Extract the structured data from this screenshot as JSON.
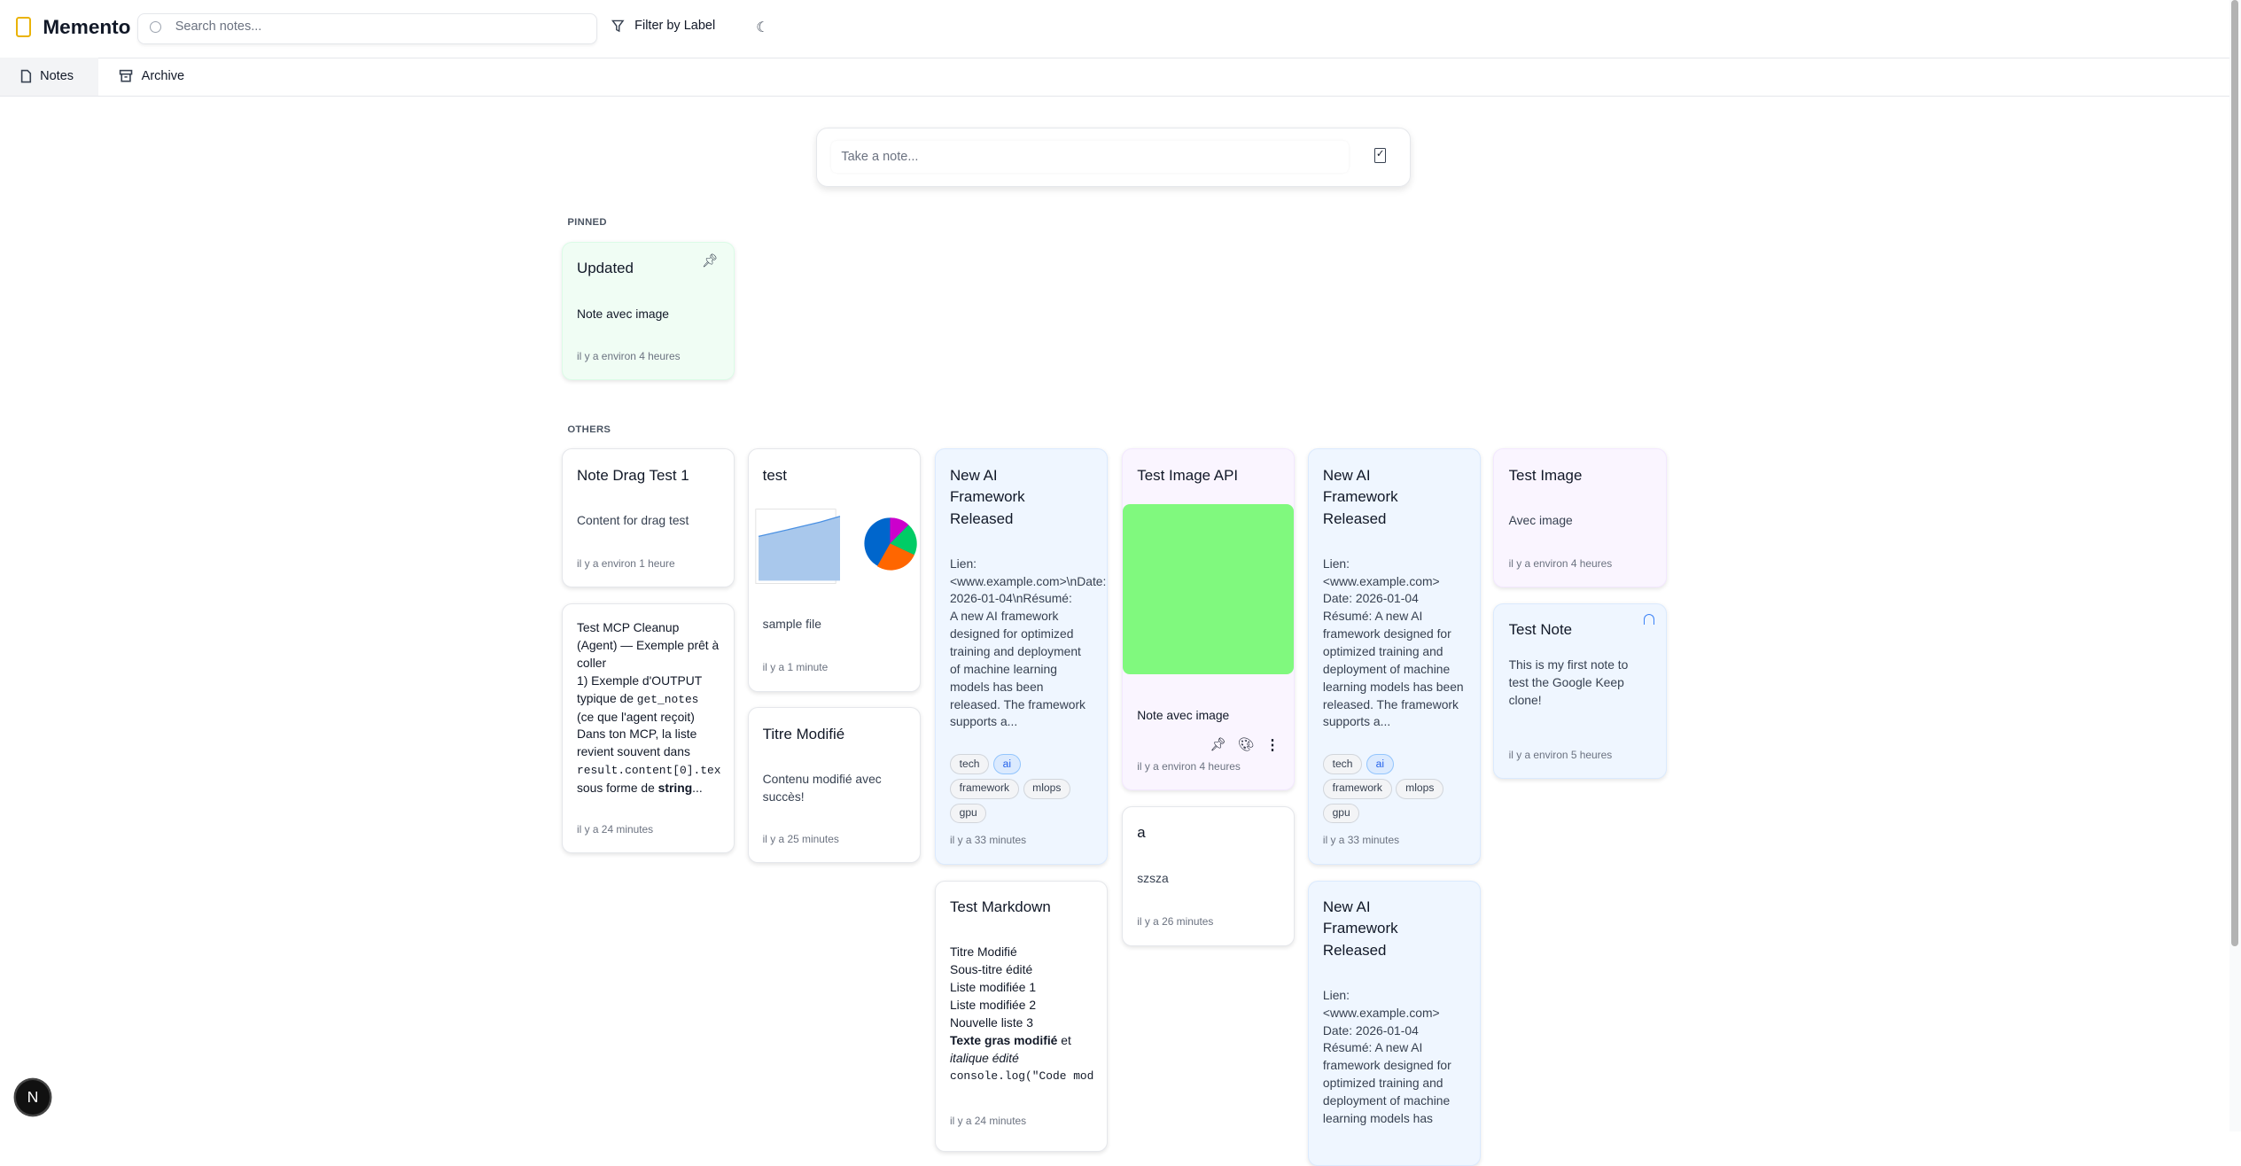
{
  "app": {
    "name": "Memento",
    "search_placeholder": "Search notes...",
    "filter_label": "Filter by Label"
  },
  "tabs": [
    {
      "label": "Notes",
      "active": true
    },
    {
      "label": "Archive",
      "active": false
    }
  ],
  "composer": {
    "placeholder": "Take a note..."
  },
  "sections": {
    "pinned": "PINNED",
    "others": "OTHERS"
  },
  "pinned": [
    {
      "title": "Updated",
      "body": "Note avec image",
      "time": "il y a environ 4 heures",
      "color": "#f0fdf4"
    }
  ],
  "notes": [
    {
      "title": "Note Drag Test 1",
      "body": "Content for drag test",
      "time": "il y a environ 1 heure"
    },
    {
      "title": "",
      "body_parts": [
        "Test MCP Cleanup (Agent) — Exemple prêt à coller\n1) Exemple d'OUTPUT typique de ",
        "get_notes",
        "\n(ce que l'agent reçoit)\nDans ton MCP, la liste revient souvent dans\n",
        "result.content[0].tex",
        "\nsous forme de ",
        "string",
        "..."
      ],
      "time": "il y a 24 minutes"
    },
    {
      "title": "test",
      "body": "sample file",
      "time": "il y a 1 minute"
    },
    {
      "title": "Titre Modifié",
      "body": "Contenu modifié avec succès!",
      "time": "il y a 25 minutes"
    },
    {
      "title": "New AI Framework Released",
      "body": "Lien:\n<www.example.com>\\nDate:\n2026-01-04\\nRésumé:\nA new AI framework designed for optimized training and deployment of machine learning models has been released. The framework supports a...",
      "tags": [
        "tech",
        "ai",
        "framework",
        "mlops",
        "gpu"
      ],
      "time": "il y a 33 minutes",
      "color": "#eff6ff"
    },
    {
      "title": "Test Markdown",
      "body_parts": [
        "Titre Modifié\nSous-titre édité\nListe modifiée 1\nListe modifiée 2\nNouvelle liste 3\n",
        "Texte gras modifié",
        " et\n",
        "italique édité",
        "\n",
        "console.log(\"Code mod"
      ],
      "time": "il y a 24 minutes"
    },
    {
      "title": "Test Image API",
      "body": "Note avec image",
      "time": "il y a environ 4 heures",
      "image_color": "#80f97e",
      "color": "#faf5ff"
    },
    {
      "title": "a",
      "body": "szsza",
      "time": "il y a 26 minutes"
    },
    {
      "title": "New AI Framework Released",
      "body": "Lien:\n<www.example.com>\nDate: 2026-01-04\nRésumé: A new AI framework designed for optimized training and deployment of machine learning models has been released. The framework supports a...",
      "tags": [
        "tech",
        "ai",
        "framework",
        "mlops",
        "gpu"
      ],
      "time": "il y a 33 minutes",
      "color": "#eff6ff"
    },
    {
      "title": "New AI Framework Released",
      "body": "Lien:\n<www.example.com>\nDate: 2026-01-04\nRésumé: A new AI framework designed for optimized training and deployment of machine learning models has",
      "color": "#eff6ff"
    },
    {
      "title": "Test Image",
      "body": "Avec image",
      "time": "il y a environ 4 heures",
      "color": "#faf5ff"
    },
    {
      "title": "Test Note",
      "body": "This is my first note to test the Google Keep clone!",
      "time": "il y a environ 5 heures",
      "color": "#eff6ff"
    }
  ],
  "dev_indicator": "N"
}
